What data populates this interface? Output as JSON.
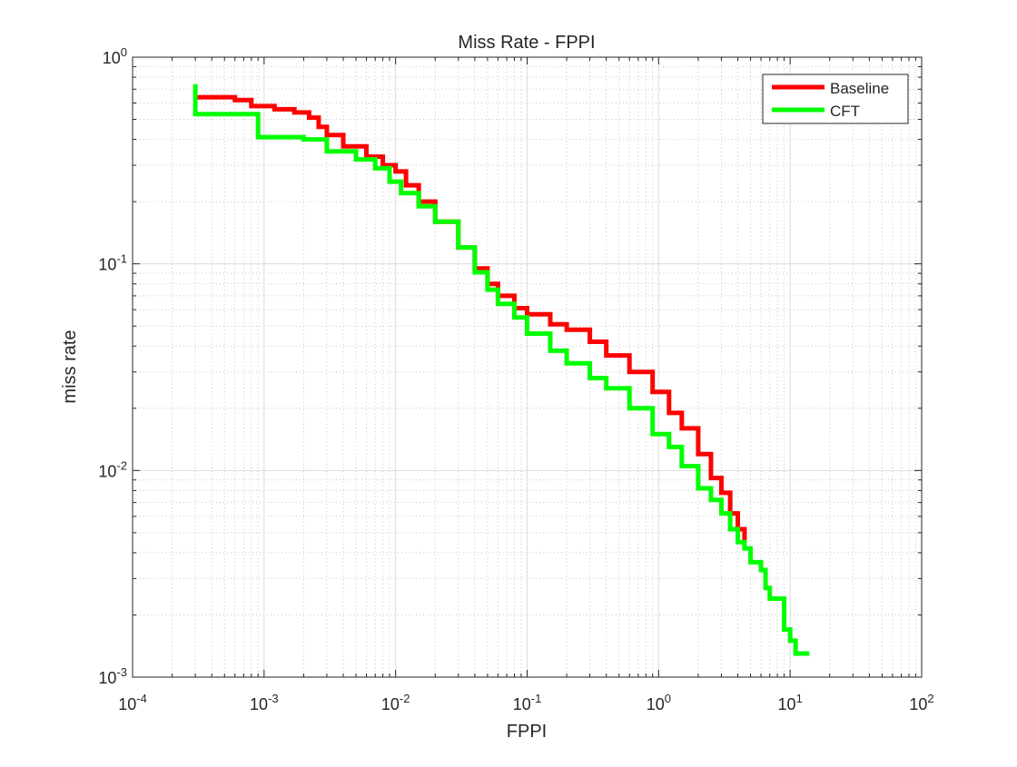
{
  "chart_data": {
    "type": "line",
    "title": "Miss Rate - FPPI",
    "xlabel": "FPPI",
    "ylabel": "miss rate",
    "xscale": "log",
    "yscale": "log",
    "xlim": [
      0.0001,
      100
    ],
    "ylim": [
      0.001,
      1
    ],
    "grid": true,
    "minor_grid": true,
    "legend_position": "top-right",
    "x_ticks": [
      {
        "base": "10",
        "exp": "-4"
      },
      {
        "base": "10",
        "exp": "-3"
      },
      {
        "base": "10",
        "exp": "-2"
      },
      {
        "base": "10",
        "exp": "-1"
      },
      {
        "base": "10",
        "exp": "0"
      },
      {
        "base": "10",
        "exp": "1"
      },
      {
        "base": "10",
        "exp": "2"
      }
    ],
    "y_ticks": [
      {
        "base": "10",
        "exp": "-3"
      },
      {
        "base": "10",
        "exp": "-2"
      },
      {
        "base": "10",
        "exp": "-1"
      },
      {
        "base": "10",
        "exp": "0"
      }
    ],
    "series": [
      {
        "name": "Baseline",
        "color": "#ff0000",
        "x": [
          0.0003,
          0.0006,
          0.0008,
          0.0012,
          0.0017,
          0.0022,
          0.0026,
          0.003,
          0.004,
          0.006,
          0.008,
          0.01,
          0.012,
          0.015,
          0.02,
          0.03,
          0.04,
          0.05,
          0.06,
          0.08,
          0.1,
          0.15,
          0.2,
          0.3,
          0.4,
          0.6,
          0.9,
          1.2,
          1.5,
          2.0,
          2.5,
          3.0,
          3.5,
          4.0,
          4.5
        ],
        "y": [
          0.64,
          0.62,
          0.58,
          0.56,
          0.54,
          0.51,
          0.46,
          0.42,
          0.37,
          0.33,
          0.3,
          0.28,
          0.24,
          0.2,
          0.16,
          0.12,
          0.095,
          0.08,
          0.07,
          0.061,
          0.057,
          0.051,
          0.048,
          0.042,
          0.036,
          0.03,
          0.024,
          0.019,
          0.016,
          0.012,
          0.0092,
          0.0078,
          0.0062,
          0.0052,
          0.0045
        ]
      },
      {
        "name": "CFT",
        "color": "#00ff00",
        "x": [
          0.0003,
          0.0003,
          0.0009,
          0.0009,
          0.002,
          0.003,
          0.005,
          0.007,
          0.009,
          0.011,
          0.015,
          0.02,
          0.03,
          0.04,
          0.05,
          0.06,
          0.08,
          0.1,
          0.15,
          0.2,
          0.3,
          0.4,
          0.6,
          0.9,
          1.2,
          1.5,
          2.0,
          2.5,
          3.0,
          3.5,
          4.0,
          4.5,
          5.0,
          6.0,
          6.5,
          7.0,
          8.0,
          9.0,
          10.0,
          11.0,
          13.0,
          14.0
        ],
        "y": [
          0.74,
          0.53,
          0.53,
          0.41,
          0.4,
          0.35,
          0.32,
          0.29,
          0.25,
          0.22,
          0.19,
          0.16,
          0.12,
          0.091,
          0.075,
          0.064,
          0.055,
          0.046,
          0.038,
          0.033,
          0.028,
          0.025,
          0.02,
          0.015,
          0.013,
          0.0105,
          0.0082,
          0.0072,
          0.0062,
          0.0052,
          0.0045,
          0.0042,
          0.0036,
          0.0033,
          0.0027,
          0.0024,
          0.0024,
          0.0017,
          0.0015,
          0.0013,
          0.0013,
          0.0013
        ]
      }
    ]
  }
}
